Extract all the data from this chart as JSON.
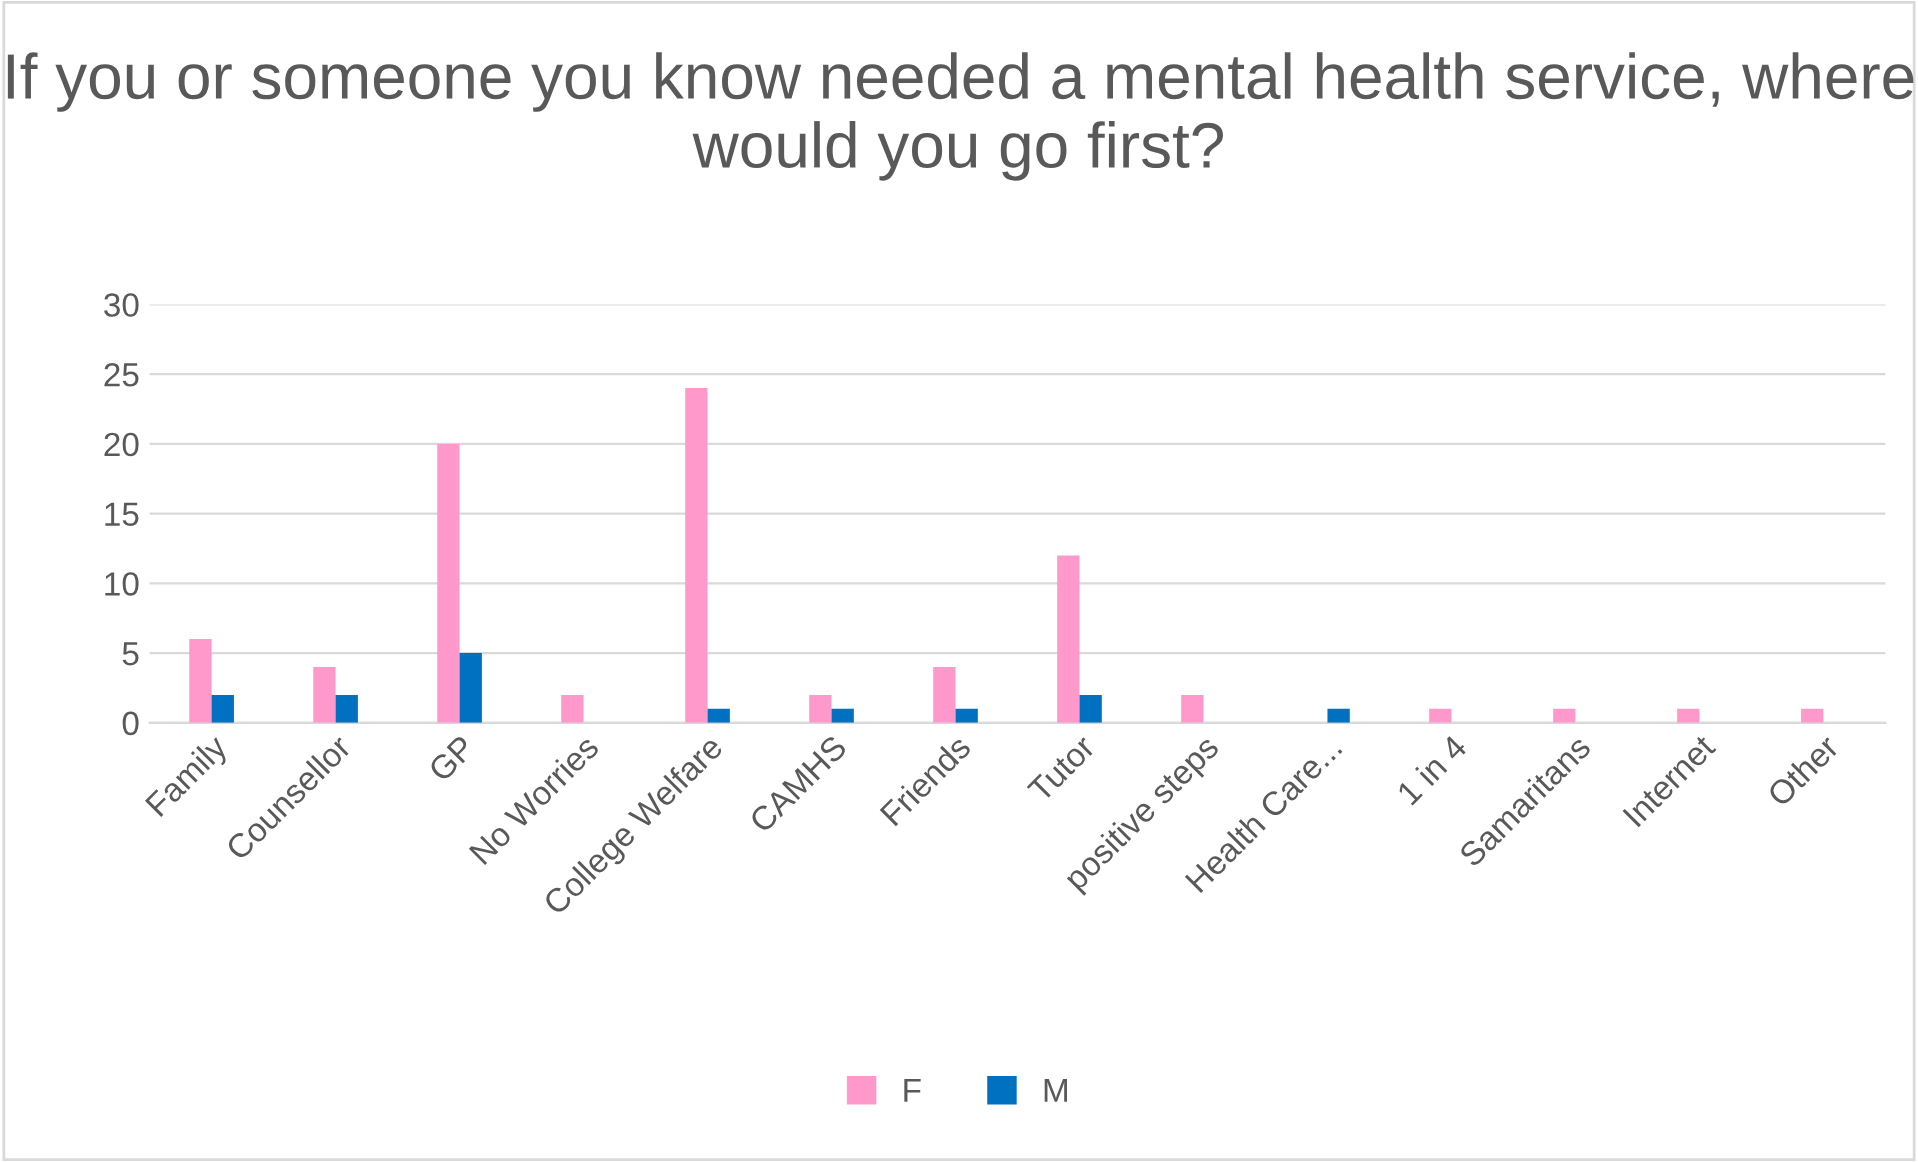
{
  "chart_data": {
    "type": "bar",
    "title": "If you or someone you know needed a mental health service, where would you go first?",
    "categories": [
      "Family",
      "Counsellor",
      "GP",
      "No Worries",
      "College Welfare",
      "CAMHS",
      "Friends",
      "Tutor",
      "positive steps",
      "Health Care...",
      "1 in 4",
      "Samaritans",
      "Internet",
      "Other"
    ],
    "series": [
      {
        "name": "F",
        "color": "#ff99cc",
        "values": [
          6,
          4,
          20,
          2,
          24,
          2,
          4,
          12,
          2,
          0,
          1,
          1,
          1,
          1
        ]
      },
      {
        "name": "M",
        "color": "#0070c0",
        "values": [
          2,
          2,
          5,
          0,
          1,
          1,
          1,
          2,
          0,
          1,
          0,
          0,
          0,
          0
        ]
      }
    ],
    "ylim": [
      0,
      30
    ],
    "yticks": [
      0,
      5,
      10,
      15,
      20,
      25,
      30
    ],
    "grid": "y",
    "legend": "bottom"
  }
}
